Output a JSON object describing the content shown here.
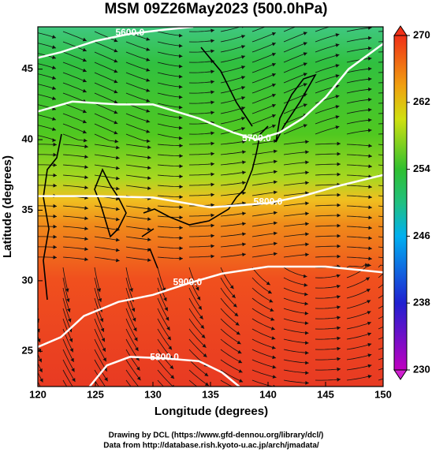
{
  "title": "MSM 09Z26May2023 (500.0hPa)",
  "map": {
    "xlabel": "Longitude (degrees)",
    "ylabel": "Latitude  (degrees)",
    "xlim": [
      120,
      150
    ],
    "ylim": [
      22.5,
      48
    ],
    "xticks": [
      120,
      125,
      130,
      135,
      140,
      145,
      150
    ],
    "yticks": [
      25,
      30,
      35,
      40,
      45
    ],
    "contours": [
      {
        "label": "5600.0",
        "lon": [
          120,
          122,
          125,
          128,
          131,
          133.5
        ],
        "lat": [
          45.8,
          46.2,
          47,
          47.5,
          47.8,
          48
        ]
      },
      {
        "label": "5700.0",
        "lon": [
          120,
          123,
          127,
          130,
          134,
          137,
          139,
          141,
          143,
          145,
          147,
          150
        ],
        "lat": [
          42,
          42.7,
          42.5,
          42.5,
          41.5,
          40.5,
          40,
          40.5,
          41.5,
          43,
          45,
          46.8
        ]
      },
      {
        "label": "5800.0",
        "lon": [
          120,
          125,
          130,
          135,
          140,
          143,
          146,
          150
        ],
        "lat": [
          36,
          36,
          35.9,
          35.2,
          35.5,
          36,
          36.7,
          37.5
        ]
      },
      {
        "label": "5900.0",
        "lon": [
          120,
          122,
          124,
          127,
          130,
          133,
          136,
          140,
          145,
          150
        ],
        "lat": [
          25.3,
          26,
          27.5,
          28.5,
          29,
          29.8,
          30.5,
          31,
          31,
          30.6
        ]
      },
      {
        "label": "5800.0",
        "lon": [
          124.5,
          126,
          128,
          131,
          134,
          136,
          137.5
        ],
        "lat": [
          22.5,
          24,
          24.6,
          24.5,
          24.3,
          23.5,
          22.5
        ]
      }
    ]
  },
  "colorbar": {
    "lim": [
      230,
      270
    ],
    "ticks": [
      230,
      238,
      246,
      254,
      262,
      270
    ]
  },
  "credits": [
    "Drawing by DCL (https://www.gfd-dennou.org/library/dcl/)",
    "Data from http://database.rish.kyoto-u.ac.jp/arch/jmadata/"
  ]
}
